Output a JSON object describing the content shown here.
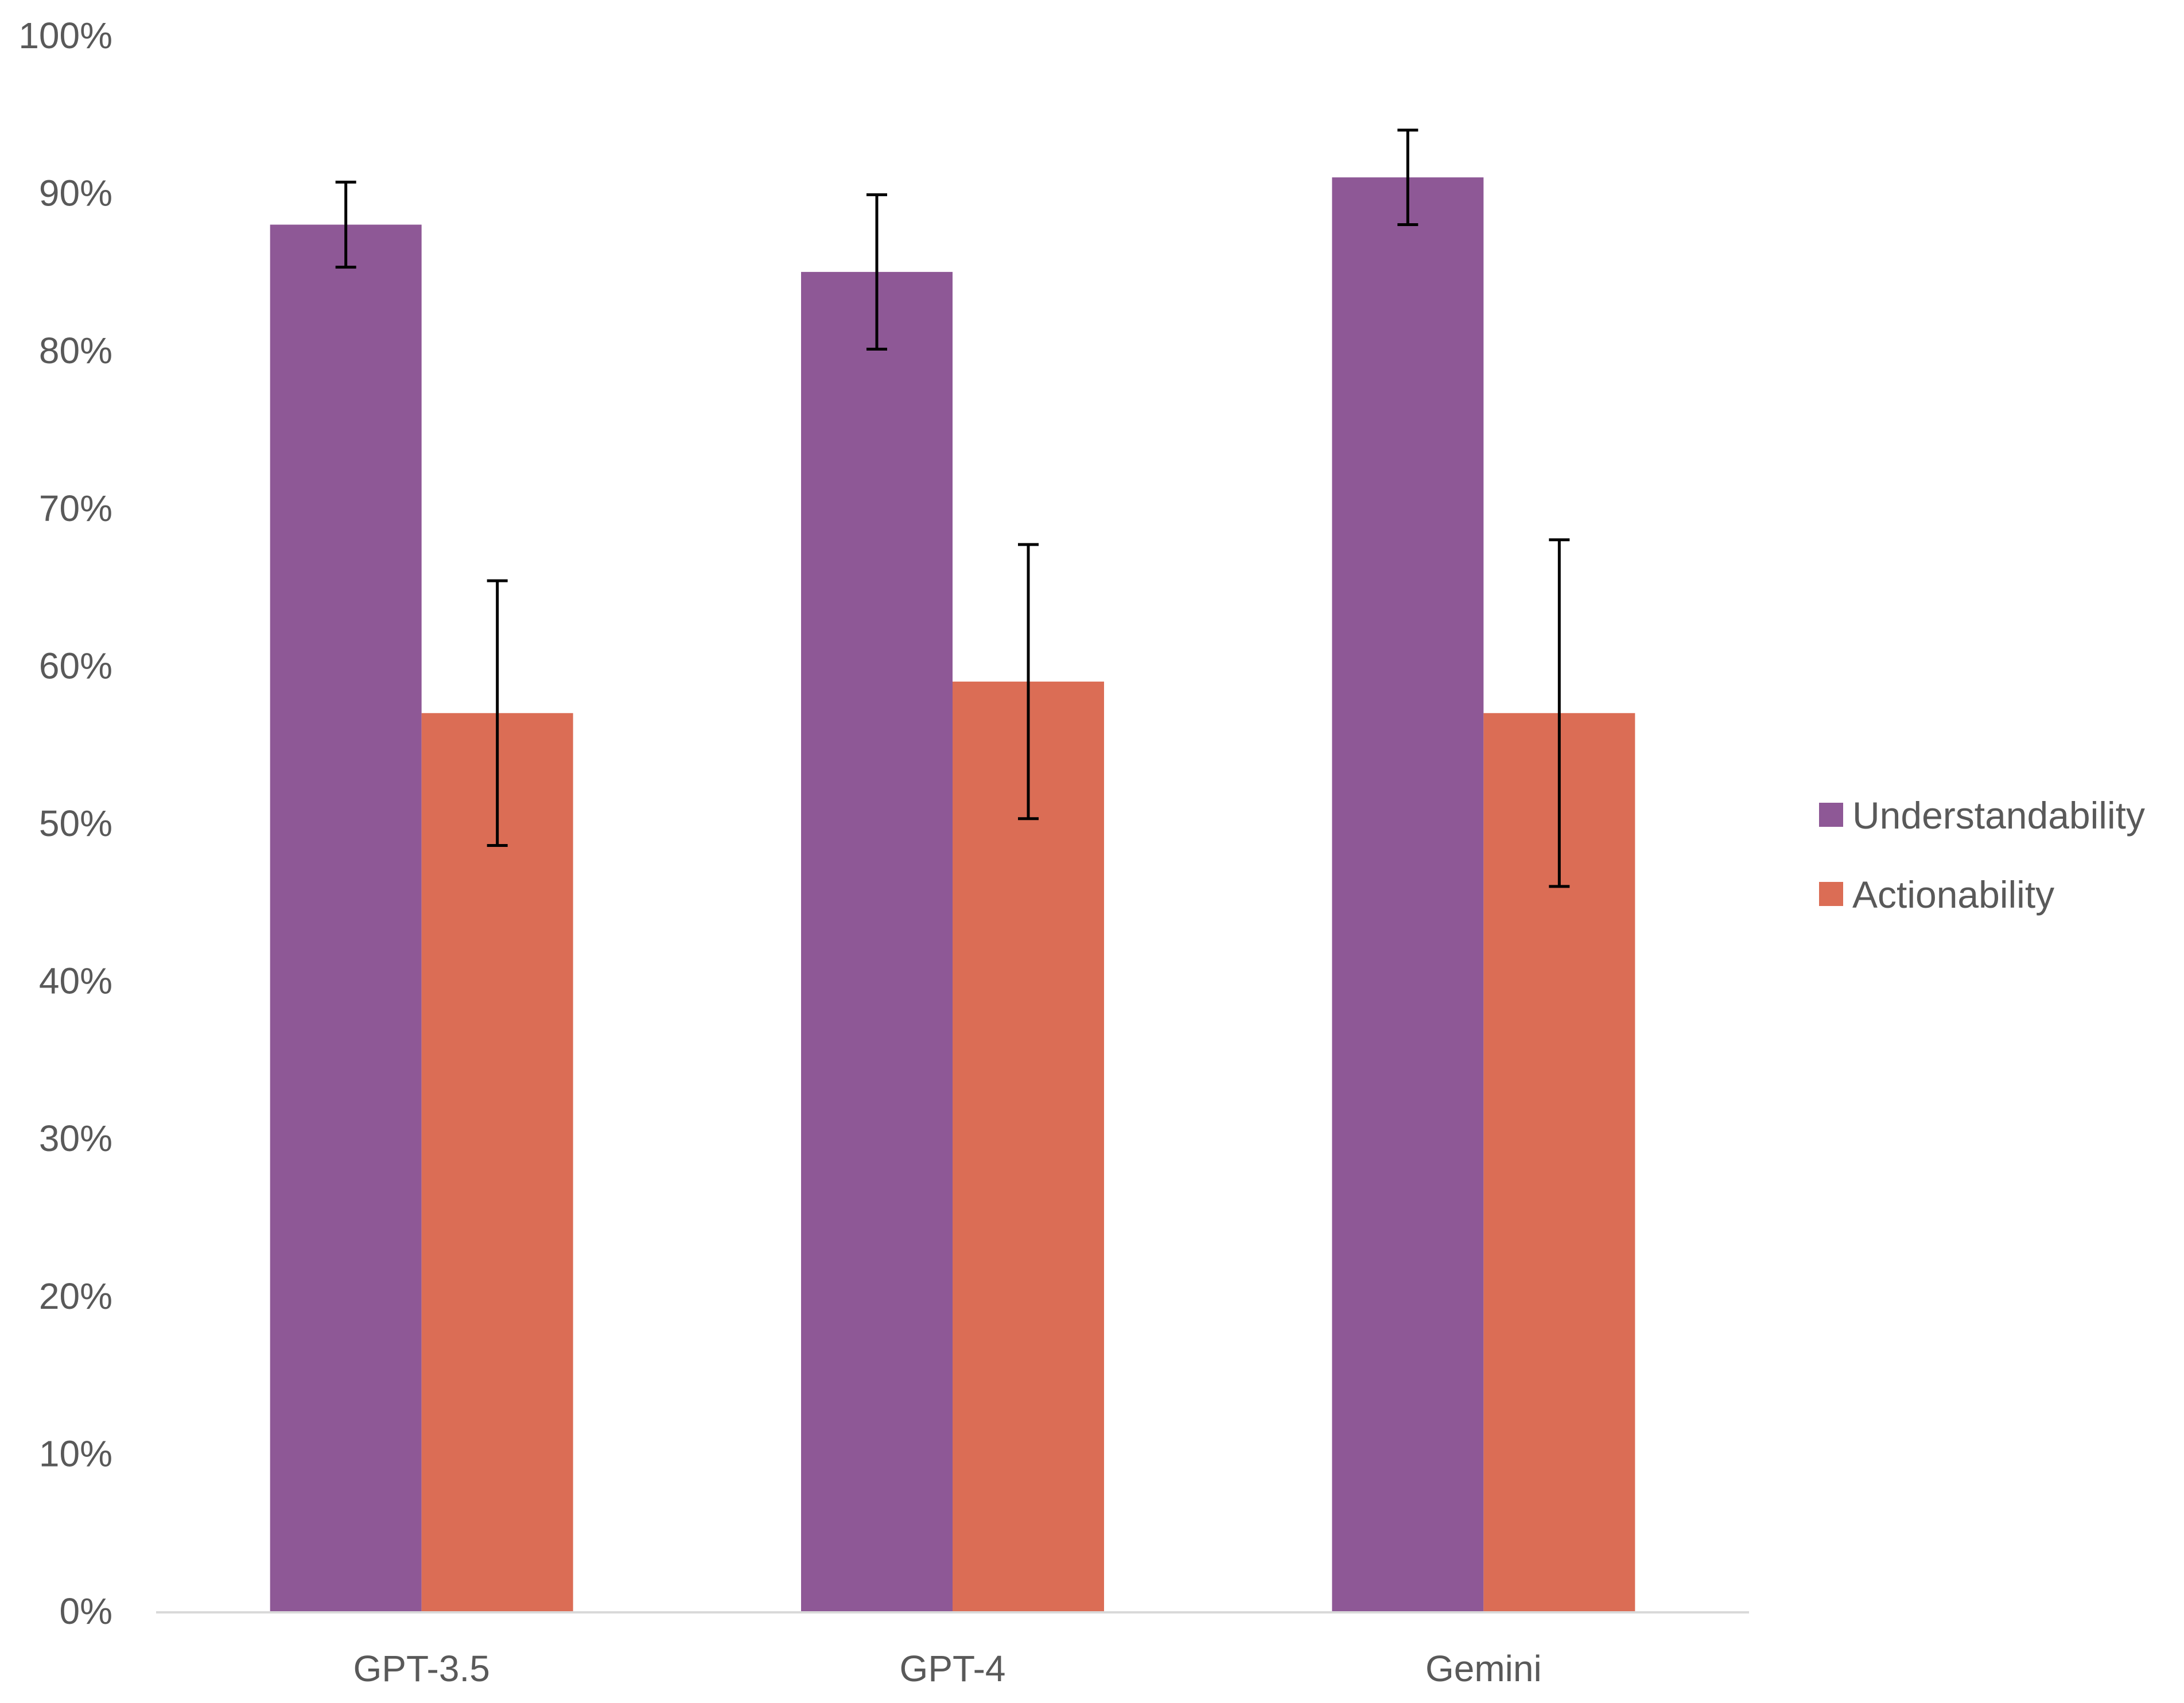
{
  "chart_data": {
    "type": "bar",
    "title": "",
    "xlabel": "",
    "ylabel": "",
    "categories": [
      "GPT-3.5",
      "GPT-4",
      "Gemini"
    ],
    "series": [
      {
        "name": "Understandability",
        "color": "#8e5896",
        "values": [
          88,
          85,
          91
        ],
        "error_low": [
          85.3,
          80.1,
          88.0
        ],
        "error_high": [
          90.7,
          89.9,
          94.0
        ]
      },
      {
        "name": "Actionability",
        "color": "#db6d55",
        "values": [
          57,
          59,
          57
        ],
        "error_low": [
          48.6,
          50.3,
          46.0
        ],
        "error_high": [
          65.4,
          67.7,
          68.0
        ]
      }
    ],
    "ylim": [
      0,
      100
    ],
    "yticks": [
      "0%",
      "10%",
      "20%",
      "30%",
      "40%",
      "50%",
      "60%",
      "70%",
      "80%",
      "90%",
      "100%"
    ],
    "grid": false,
    "legend": "right",
    "axis_color": "#d9d9d9",
    "error_bar_color": "#000000"
  }
}
